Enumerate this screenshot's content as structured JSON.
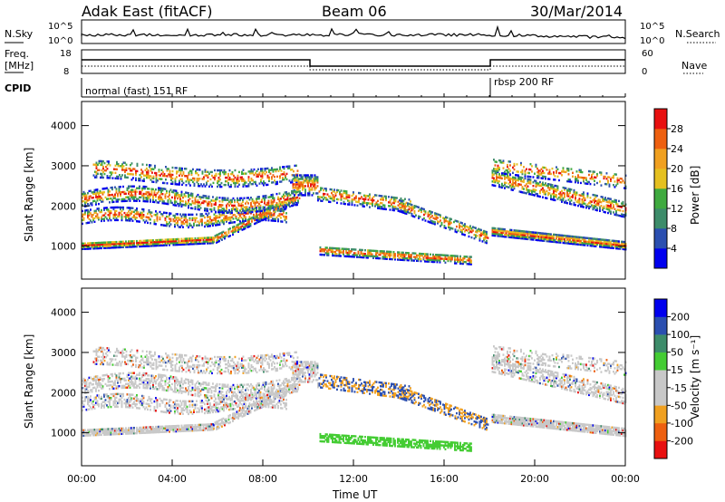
{
  "header": {
    "station": "Adak East (fitACF)",
    "beam": "Beam 06",
    "date": "30/Mar/2014"
  },
  "panels": {
    "noise": {
      "left_label": "N.Sky",
      "right_label": "N.Search",
      "left_ticks": [
        "10^5",
        "10^0"
      ],
      "right_ticks": [
        "10^5",
        "10^0"
      ]
    },
    "freq": {
      "left_label_1": "Freq.",
      "left_label_2": "[MHz]",
      "left_ticks": [
        "18",
        "8"
      ],
      "right_label": "Nave",
      "right_ticks": [
        "60",
        "0"
      ]
    },
    "cpid": {
      "label": "CPID",
      "mode_1": "normal (fast) 151 RF",
      "mode_2": "rbsp 200 RF"
    }
  },
  "colors": {
    "power_scale": [
      "#0000ee",
      "#2b4fb0",
      "#3d8c6a",
      "#3faa3f",
      "#e5c020",
      "#f0a020",
      "#ee6010",
      "#e81010"
    ],
    "velocity_scale": [
      "#e81010",
      "#ee6010",
      "#f0a020",
      "#c8c8c8",
      "#c8c8c8",
      "#44cc33",
      "#3d8c6a",
      "#2b4fb0",
      "#0000ee"
    ]
  },
  "chart_data": [
    {
      "type": "heatmap",
      "name": "power",
      "ylabel": "Slant Range [km]",
      "yticks": [
        1000,
        2000,
        3000,
        4000
      ],
      "ylim": [
        180,
        4600
      ],
      "xlim": [
        0,
        24
      ],
      "xticks": [
        "00:00",
        "04:00",
        "08:00",
        "12:00",
        "16:00",
        "20:00",
        "00:00"
      ],
      "colorbar_label": "Power [dB]",
      "colorbar_ticks": [
        "4",
        "8",
        "12",
        "16",
        "20",
        "24",
        "28"
      ],
      "colorbar_range": [
        0,
        32
      ]
    },
    {
      "type": "heatmap",
      "name": "velocity",
      "ylabel": "Slant Range [km]",
      "yticks": [
        1000,
        2000,
        3000,
        4000
      ],
      "ylim": [
        180,
        4600
      ],
      "xlim": [
        0,
        24
      ],
      "xticks": [
        "00:00",
        "04:00",
        "08:00",
        "12:00",
        "16:00",
        "20:00",
        "00:00"
      ],
      "xlabel": "Time UT",
      "colorbar_label": "Velocity [m s⁻¹]",
      "colorbar_ticks": [
        "-200",
        "-100",
        "-50",
        "-15",
        "15",
        "50",
        "100",
        "200"
      ],
      "colorbar_range": [
        -250,
        250
      ]
    }
  ]
}
